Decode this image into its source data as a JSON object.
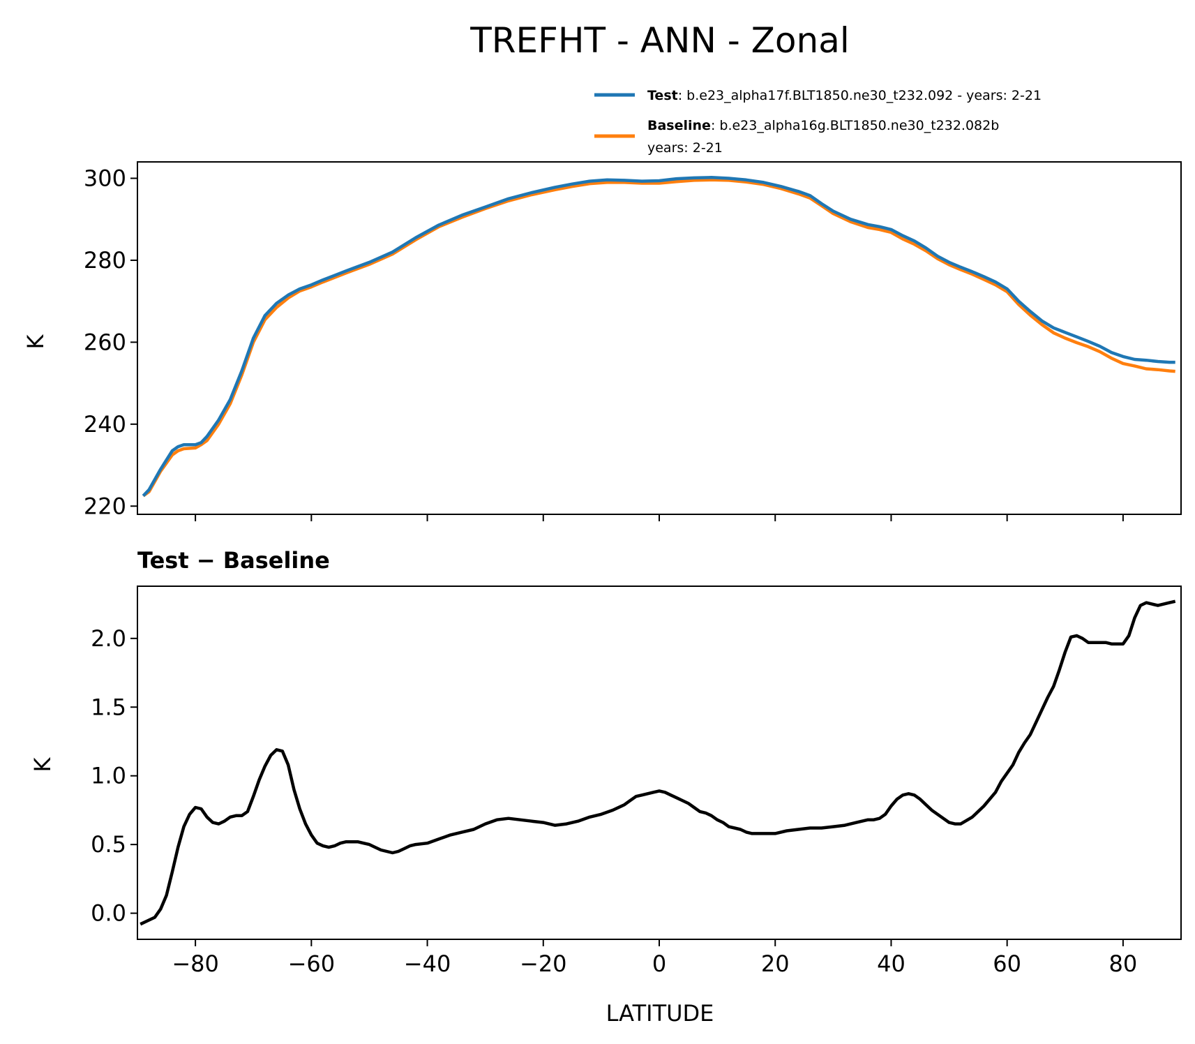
{
  "figure": {
    "title": "TREFHT - ANN - Zonal"
  },
  "legend": {
    "test_key": "Test",
    "test_text": ": b.e23_alpha17f.BLT1850.ne30_t232.092 - years: 2-21",
    "baseline_key": "Baseline",
    "baseline_text": ": b.e23_alpha16g.BLT1850.ne30_t232.082b",
    "baseline_text2": "years: 2-21"
  },
  "colors": {
    "test": "#1f77b4",
    "baseline": "#ff7f0e",
    "difference": "#000000"
  },
  "chart_data": [
    {
      "type": "line",
      "title": "",
      "xlabel": "",
      "ylabel": "K",
      "xlim": [
        -90,
        90
      ],
      "ylim": [
        218,
        304
      ],
      "yticks": [
        "220",
        "240",
        "260",
        "280",
        "300"
      ],
      "grid": false,
      "legend_position": "top-right",
      "x": [
        -89,
        -88,
        -86,
        -84,
        -83,
        -82,
        -80,
        -79,
        -78,
        -76,
        -74,
        -72,
        -70,
        -68,
        -66,
        -64,
        -62,
        -60,
        -58,
        -56,
        -54,
        -50,
        -46,
        -42,
        -38,
        -34,
        -30,
        -26,
        -22,
        -18,
        -15,
        -12,
        -9,
        -6,
        -3,
        0,
        3,
        6,
        9,
        12,
        15,
        18,
        21,
        24,
        26,
        28,
        30,
        33,
        36,
        38,
        40,
        42,
        44,
        46,
        48,
        50,
        52,
        54,
        56,
        58,
        60,
        62,
        64,
        66,
        68,
        70,
        72,
        74,
        76,
        78,
        80,
        82,
        84,
        86,
        88,
        89
      ],
      "series": [
        {
          "name": "Test",
          "values": [
            222.5,
            224,
            229,
            233.5,
            234.5,
            235,
            235,
            235.5,
            237,
            241,
            246,
            253,
            261,
            266.5,
            269.5,
            271.5,
            273,
            274,
            275.2,
            276.3,
            277.4,
            279.5,
            282,
            285.5,
            288.6,
            291,
            293,
            295,
            296.5,
            297.8,
            298.6,
            299.3,
            299.6,
            299.5,
            299.3,
            299.4,
            299.9,
            300.1,
            300.2,
            300,
            299.6,
            299,
            298,
            296.8,
            295.8,
            293.8,
            292,
            290,
            288.7,
            288.2,
            287.5,
            286,
            284.7,
            283,
            281,
            279.5,
            278.3,
            277.2,
            276,
            274.7,
            273,
            270,
            267.5,
            265.2,
            263.5,
            262.4,
            261.3,
            260.2,
            259,
            257.5,
            256.5,
            255.8,
            255.6,
            255.3,
            255.1,
            255.1
          ]
        },
        {
          "name": "Baseline",
          "values": [
            222.5,
            223.5,
            228.5,
            232.5,
            233.5,
            234,
            234.2,
            235,
            236,
            240,
            245,
            252,
            260,
            265.5,
            268.5,
            270.8,
            272.5,
            273.5,
            274.7,
            275.8,
            276.9,
            279,
            281.5,
            285,
            288.2,
            290.5,
            292.6,
            294.5,
            296,
            297.2,
            298,
            298.7,
            299,
            299,
            298.8,
            298.8,
            299.2,
            299.5,
            299.6,
            299.5,
            299.1,
            298.5,
            297.5,
            296.2,
            295.2,
            293.3,
            291.4,
            289.4,
            288,
            287.5,
            286.8,
            285.2,
            283.9,
            282.3,
            280.4,
            278.9,
            277.7,
            276.6,
            275.3,
            274,
            272.3,
            269.2,
            266.6,
            264.3,
            262.3,
            261,
            259.9,
            258.9,
            257.7,
            256.1,
            254.8,
            254.2,
            253.5,
            253.3,
            253,
            252.9
          ]
        }
      ]
    },
    {
      "type": "line",
      "title": "Test − Baseline",
      "xlabel": "LATITUDE",
      "ylabel": "K",
      "xlim": [
        -90,
        90
      ],
      "ylim": [
        -0.19,
        2.38
      ],
      "xticks": [
        "−80",
        "−60",
        "−40",
        "−20",
        "0",
        "20",
        "40",
        "60",
        "80"
      ],
      "yticks": [
        "0.0",
        "0.5",
        "1.0",
        "1.5",
        "2.0"
      ],
      "grid": false,
      "x": [
        -89.5,
        -88.5,
        -87,
        -86,
        -85,
        -84,
        -83,
        -82,
        -81,
        -80,
        -79,
        -78,
        -77,
        -76,
        -75,
        -74,
        -73,
        -72,
        -71,
        -70,
        -69,
        -68,
        -67,
        -66,
        -65,
        -64,
        -63,
        -62,
        -61,
        -60,
        -59,
        -58,
        -57,
        -56,
        -55,
        -54,
        -53,
        -52,
        -51,
        -50,
        -49,
        -48,
        -47,
        -46,
        -45,
        -44,
        -43,
        -42,
        -40,
        -38,
        -36,
        -34,
        -32,
        -30,
        -28,
        -26,
        -24,
        -22,
        -20,
        -18,
        -16,
        -14,
        -12,
        -10,
        -8,
        -6,
        -5,
        -4,
        -3,
        -2,
        -1,
        0,
        1,
        2,
        3,
        4,
        5,
        6,
        7,
        8,
        9,
        10,
        11,
        12,
        13,
        14,
        15,
        16,
        18,
        20,
        22,
        24,
        26,
        28,
        30,
        32,
        34,
        36,
        37,
        38,
        39,
        40,
        41,
        42,
        43,
        44,
        45,
        46,
        47,
        48,
        49,
        50,
        51,
        52,
        54,
        56,
        58,
        59,
        60,
        61,
        62,
        63,
        64,
        65,
        66,
        67,
        68,
        69,
        70,
        71,
        72,
        73,
        74,
        75,
        76,
        77,
        78,
        79,
        80,
        81,
        82,
        83,
        84,
        85,
        86,
        87,
        88,
        89
      ],
      "series": [
        {
          "name": "Test − Baseline",
          "values": [
            -0.08,
            -0.06,
            -0.03,
            0.03,
            0.13,
            0.3,
            0.48,
            0.63,
            0.72,
            0.77,
            0.76,
            0.7,
            0.66,
            0.65,
            0.67,
            0.7,
            0.71,
            0.71,
            0.74,
            0.85,
            0.97,
            1.07,
            1.15,
            1.19,
            1.18,
            1.08,
            0.9,
            0.76,
            0.65,
            0.57,
            0.51,
            0.49,
            0.48,
            0.49,
            0.51,
            0.52,
            0.52,
            0.52,
            0.51,
            0.5,
            0.48,
            0.46,
            0.45,
            0.44,
            0.45,
            0.47,
            0.49,
            0.5,
            0.51,
            0.54,
            0.57,
            0.59,
            0.61,
            0.65,
            0.68,
            0.69,
            0.68,
            0.67,
            0.66,
            0.64,
            0.65,
            0.67,
            0.7,
            0.72,
            0.75,
            0.79,
            0.82,
            0.85,
            0.86,
            0.87,
            0.88,
            0.89,
            0.88,
            0.86,
            0.84,
            0.82,
            0.8,
            0.77,
            0.74,
            0.73,
            0.71,
            0.68,
            0.66,
            0.63,
            0.62,
            0.61,
            0.59,
            0.58,
            0.58,
            0.58,
            0.6,
            0.61,
            0.62,
            0.62,
            0.63,
            0.64,
            0.66,
            0.68,
            0.68,
            0.69,
            0.72,
            0.78,
            0.83,
            0.86,
            0.87,
            0.86,
            0.83,
            0.79,
            0.75,
            0.72,
            0.69,
            0.66,
            0.65,
            0.65,
            0.7,
            0.78,
            0.88,
            0.96,
            1.02,
            1.08,
            1.17,
            1.24,
            1.3,
            1.39,
            1.48,
            1.57,
            1.65,
            1.77,
            1.9,
            2.01,
            2.02,
            2.0,
            1.97,
            1.97,
            1.97,
            1.97,
            1.96,
            1.96,
            1.96,
            2.02,
            2.15,
            2.24,
            2.26,
            2.25,
            2.24,
            2.25,
            2.26,
            2.27
          ]
        }
      ]
    }
  ]
}
